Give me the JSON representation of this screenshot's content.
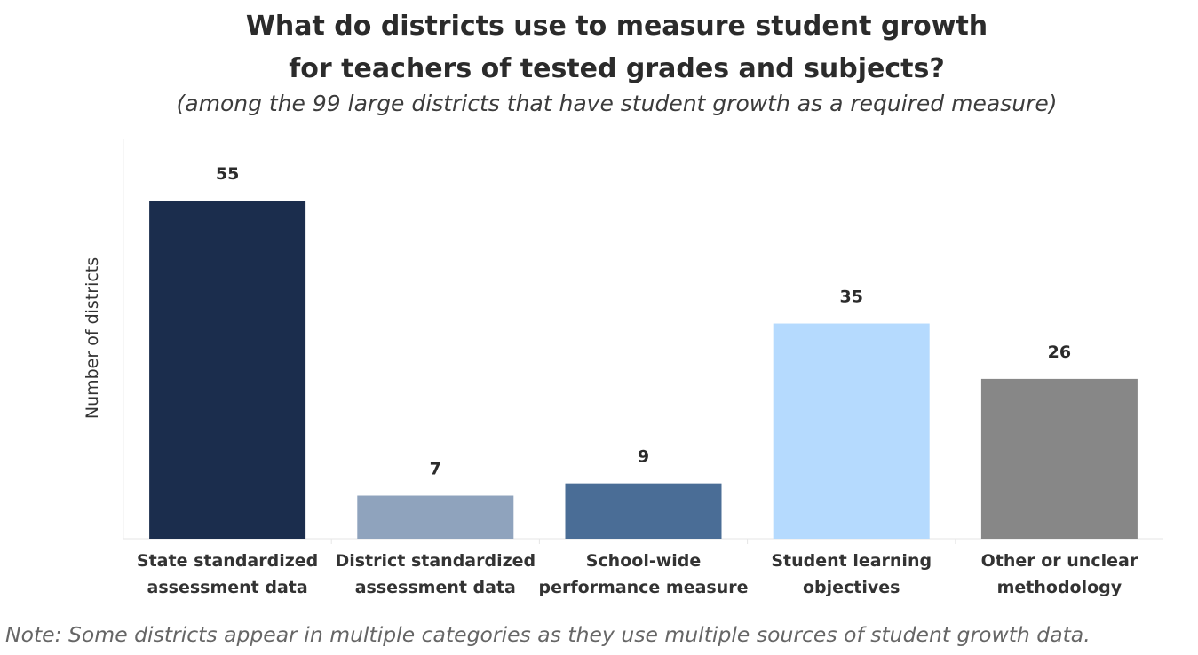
{
  "chart_data": {
    "type": "bar",
    "title": "What do districts use to measure student growth for teachers of tested grades and subjects?",
    "title_lines": [
      "What do districts use to measure student growth",
      "for teachers of tested grades and subjects?"
    ],
    "subtitle": "(among the 99 large districts that have student growth as a required measure)",
    "ylabel": "Number of districts",
    "xlabel": "",
    "ylim": [
      0,
      60
    ],
    "grid": false,
    "categories": [
      [
        "State standardized",
        "assessment data"
      ],
      [
        "District standardized",
        "assessment data"
      ],
      [
        "School-wide",
        "performance measure"
      ],
      [
        "Student learning",
        "objectives"
      ],
      [
        "Other or unclear",
        "methodology"
      ]
    ],
    "values": [
      55,
      7,
      9,
      35,
      26
    ],
    "colors": [
      "#1b2d4d",
      "#8fa3bd",
      "#4a6d96",
      "#b5dafe",
      "#878787"
    ],
    "note": "Note: Some districts appear in multiple categories as they use multiple sources of student growth data."
  }
}
